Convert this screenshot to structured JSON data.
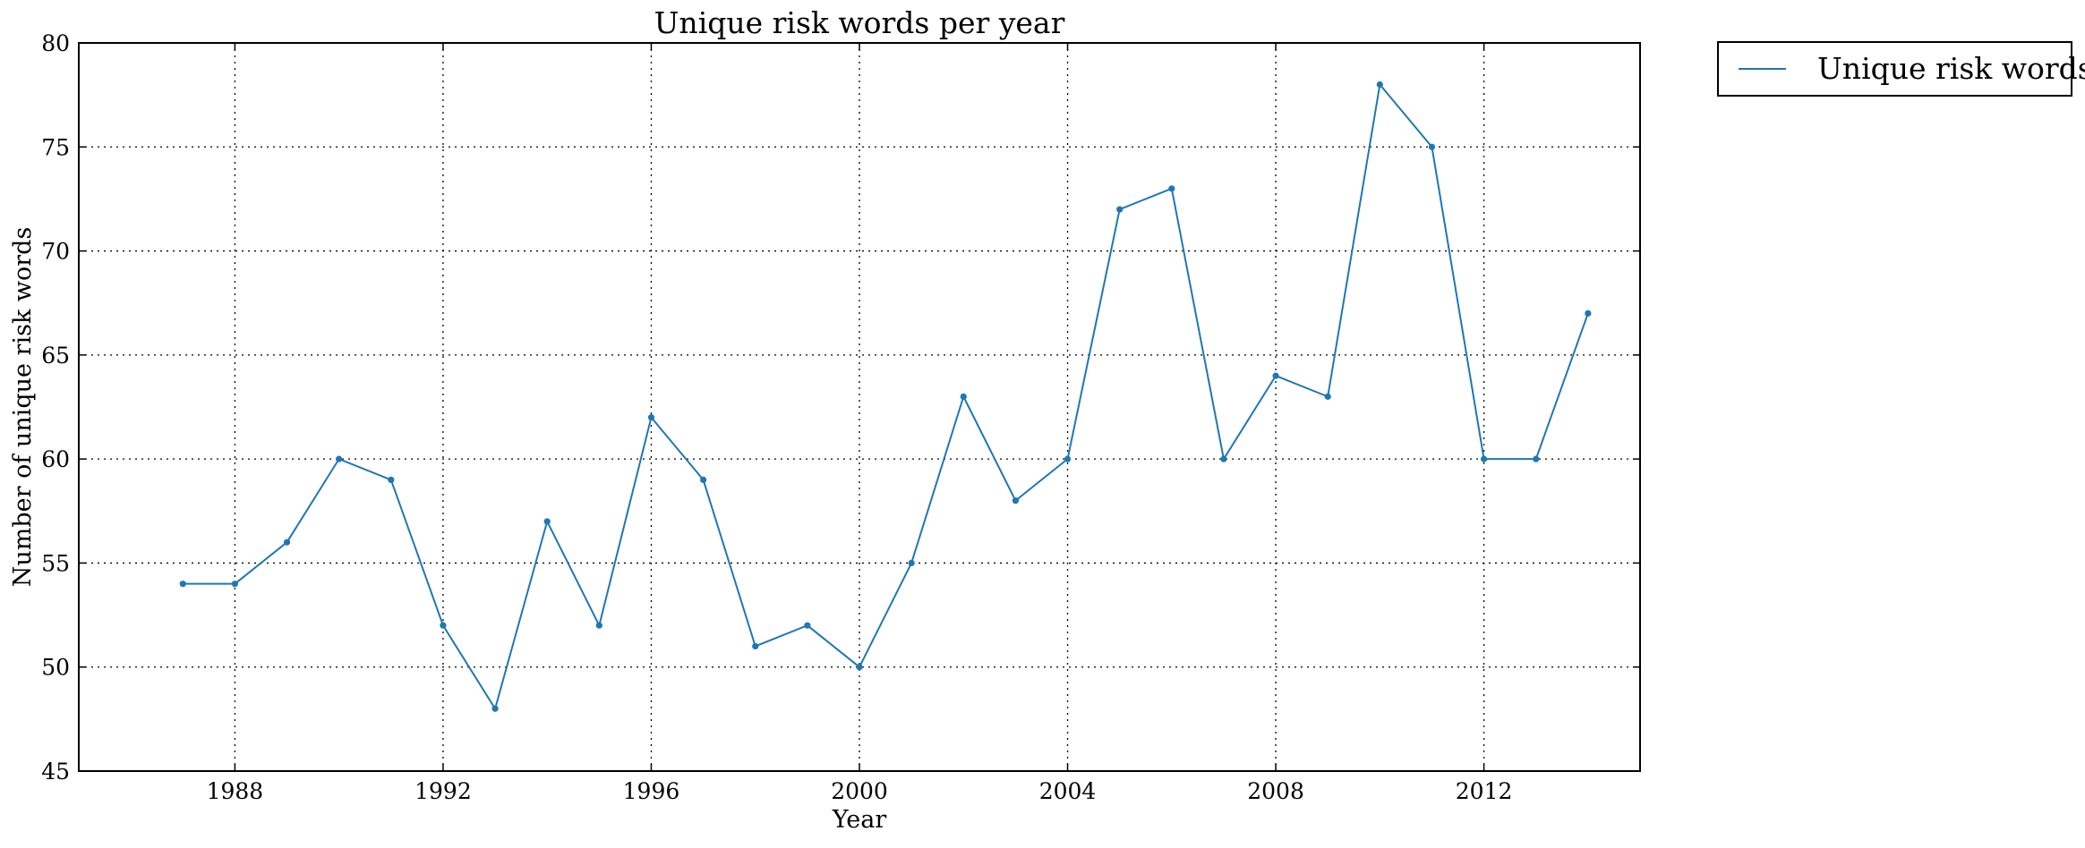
{
  "chart_data": {
    "type": "line",
    "title": "Unique risk words per year",
    "xlabel": "Year",
    "ylabel": "Number of unique risk words",
    "xlim": [
      1985,
      2015
    ],
    "ylim": [
      45,
      80
    ],
    "xticks": [
      1988,
      1992,
      1996,
      2000,
      2004,
      2008,
      2012
    ],
    "yticks": [
      45,
      50,
      55,
      60,
      65,
      70,
      75,
      80
    ],
    "grid": true,
    "legend_position": "outside-top-right",
    "series": [
      {
        "name": "Unique risk words",
        "color": "#1f77b4",
        "x": [
          1987,
          1988,
          1989,
          1990,
          1991,
          1992,
          1993,
          1994,
          1995,
          1996,
          1997,
          1998,
          1999,
          2000,
          2001,
          2002,
          2003,
          2004,
          2005,
          2006,
          2007,
          2008,
          2009,
          2010,
          2011,
          2012,
          2013,
          2014
        ],
        "y": [
          54,
          54,
          56,
          60,
          59,
          52,
          48,
          57,
          52,
          62,
          59,
          51,
          52,
          50,
          55,
          63,
          58,
          60,
          72,
          73,
          60,
          64,
          63,
          78,
          75,
          60,
          60,
          67
        ]
      }
    ]
  }
}
